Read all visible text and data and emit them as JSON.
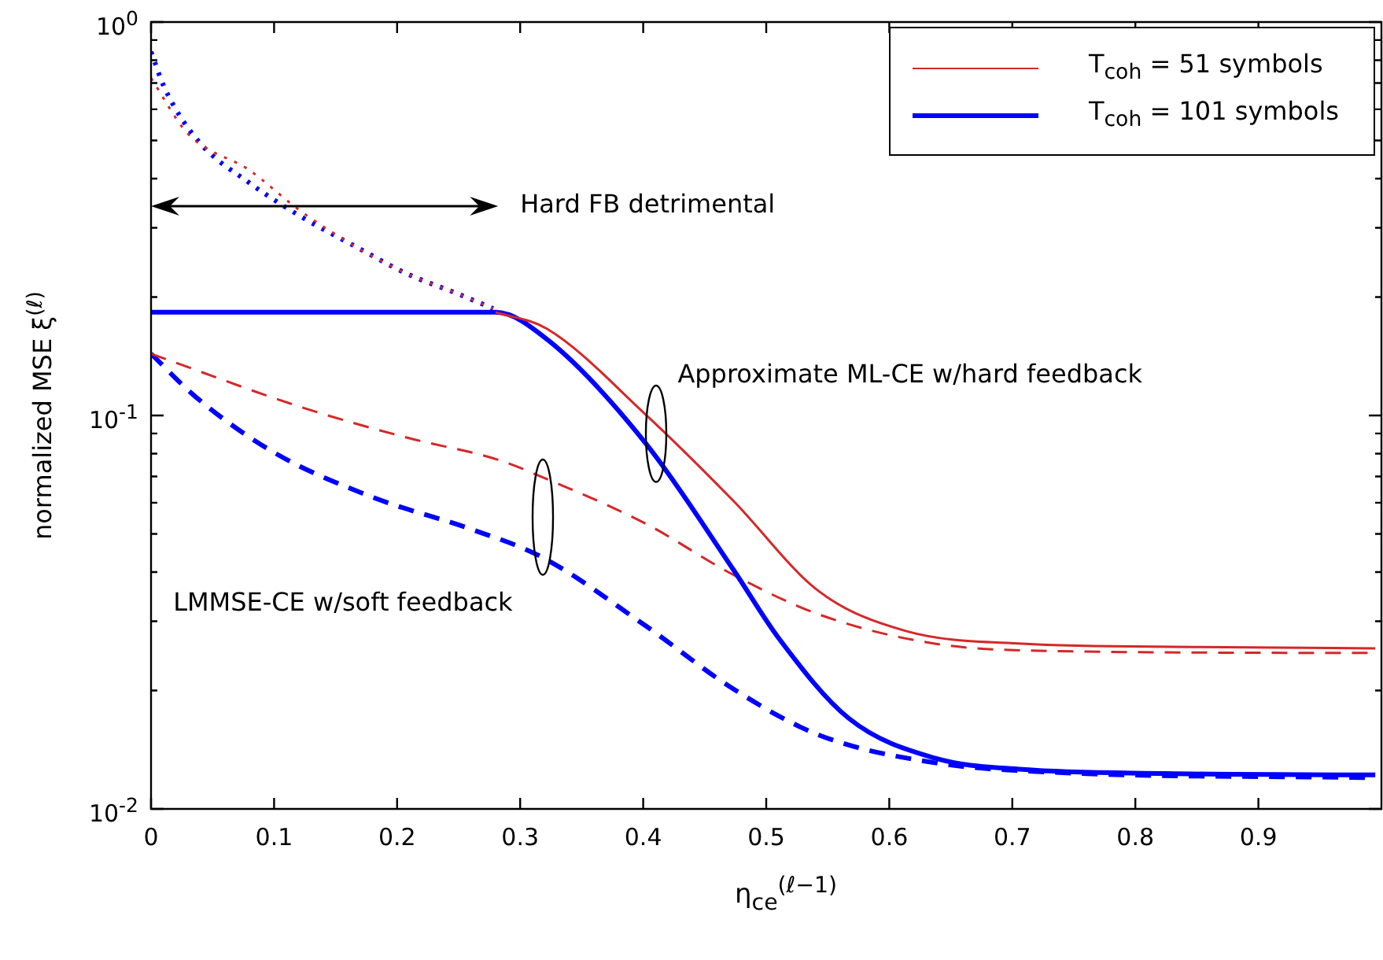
{
  "chart_data": {
    "type": "line",
    "xlabel": "η$_{ce}$$^{(ℓ−1)}$",
    "ylabel": "normalized MSE ξ$^{(ℓ)}$",
    "xlim": [
      0,
      1
    ],
    "xticks": [
      0,
      0.1,
      0.2,
      0.3,
      0.4,
      0.5,
      0.6,
      0.7,
      0.8,
      0.9
    ],
    "ylim": [
      0.01,
      1
    ],
    "yticks": [
      {
        "value": 0.01,
        "label": "10$^{-2}$"
      },
      {
        "value": 0.02,
        "label": null
      },
      {
        "value": 0.03,
        "label": null
      },
      {
        "value": 0.04,
        "label": null
      },
      {
        "value": 0.05,
        "label": null
      },
      {
        "value": 0.06,
        "label": null
      },
      {
        "value": 0.07,
        "label": null
      },
      {
        "value": 0.08,
        "label": null
      },
      {
        "value": 0.09,
        "label": null
      },
      {
        "value": 0.1,
        "label": "10$^{-1}$"
      },
      {
        "value": 0.2,
        "label": null
      },
      {
        "value": 0.3,
        "label": null
      },
      {
        "value": 0.4,
        "label": null
      },
      {
        "value": 0.5,
        "label": null
      },
      {
        "value": 0.6,
        "label": null
      },
      {
        "value": 0.7,
        "label": null
      },
      {
        "value": 0.8,
        "label": null
      },
      {
        "value": 0.9,
        "label": null
      },
      {
        "value": 1,
        "label": "10$^{0}$"
      }
    ],
    "log": "y",
    "legend": "top right",
    "marker": "none",
    "series": [
      {
        "name": "T$_{coh}$ = 51 symbols",
        "color": "#d62728",
        "line_style": "solid",
        "x": [
          0.28,
          0.322,
          0.402,
          0.473,
          0.543,
          0.614,
          0.708,
          0.85,
          0.995
        ],
        "values": [
          0.183,
          0.166,
          0.1005,
          0.0608,
          0.0357,
          0.0283,
          0.0263,
          0.0258,
          0.0256
        ]
      },
      {
        "name": "T$_{coh}$ = 101 symbols",
        "color": "#0000ff",
        "line_style": "solid",
        "x": [
          0,
          0.28,
          0.322,
          0.402,
          0.473,
          0.51,
          0.567,
          0.637,
          0.708,
          0.825,
          0.995
        ],
        "values": [
          0.183,
          0.183,
          0.156,
          0.085,
          0.0407,
          0.0272,
          0.017,
          0.01346,
          0.0126,
          0.0123,
          0.0122
        ]
      },
      {
        "color": "#d62728",
        "line_style": "dashed",
        "x": [
          0,
          0.122,
          0.207,
          0.283,
          0.318,
          0.402,
          0.473,
          0.543,
          0.637,
          0.731,
          0.995
        ],
        "values": [
          0.1435,
          0.105,
          0.088,
          0.077,
          0.0697,
          0.0531,
          0.0394,
          0.0312,
          0.0263,
          0.0252,
          0.0249
        ]
      },
      {
        "color": "#0000ff",
        "line_style": "dashed",
        "x": [
          0,
          0.037,
          0.1,
          0.18,
          0.261,
          0.318,
          0.402,
          0.473,
          0.543,
          0.637,
          0.731,
          0.995
        ],
        "values": [
          0.1435,
          0.111,
          0.0805,
          0.062,
          0.0513,
          0.0436,
          0.0292,
          0.0202,
          0.0154,
          0.0131,
          0.0124,
          0.012
        ]
      },
      {
        "color": "#d62728",
        "line_style": "dotted",
        "x": [
          0,
          0.03,
          0.08,
          0.122,
          0.165,
          0.207,
          0.249,
          0.278
        ],
        "values": [
          0.72,
          0.52,
          0.42,
          0.33,
          0.27,
          0.23,
          0.204,
          0.187
        ]
      },
      {
        "color": "#0000ff",
        "line_style": "dotted",
        "x": [
          0,
          0.011,
          0.038,
          0.08,
          0.122,
          0.165,
          0.207,
          0.249,
          0.278
        ],
        "values": [
          0.84,
          0.68,
          0.5,
          0.39,
          0.32,
          0.27,
          0.23,
          0.204,
          0.187
        ]
      }
    ],
    "annotations": [
      "Hard FB detrimental",
      "Approximate ML-CE w/hard feedback",
      "LMMSE-CE w/soft feedback"
    ]
  }
}
